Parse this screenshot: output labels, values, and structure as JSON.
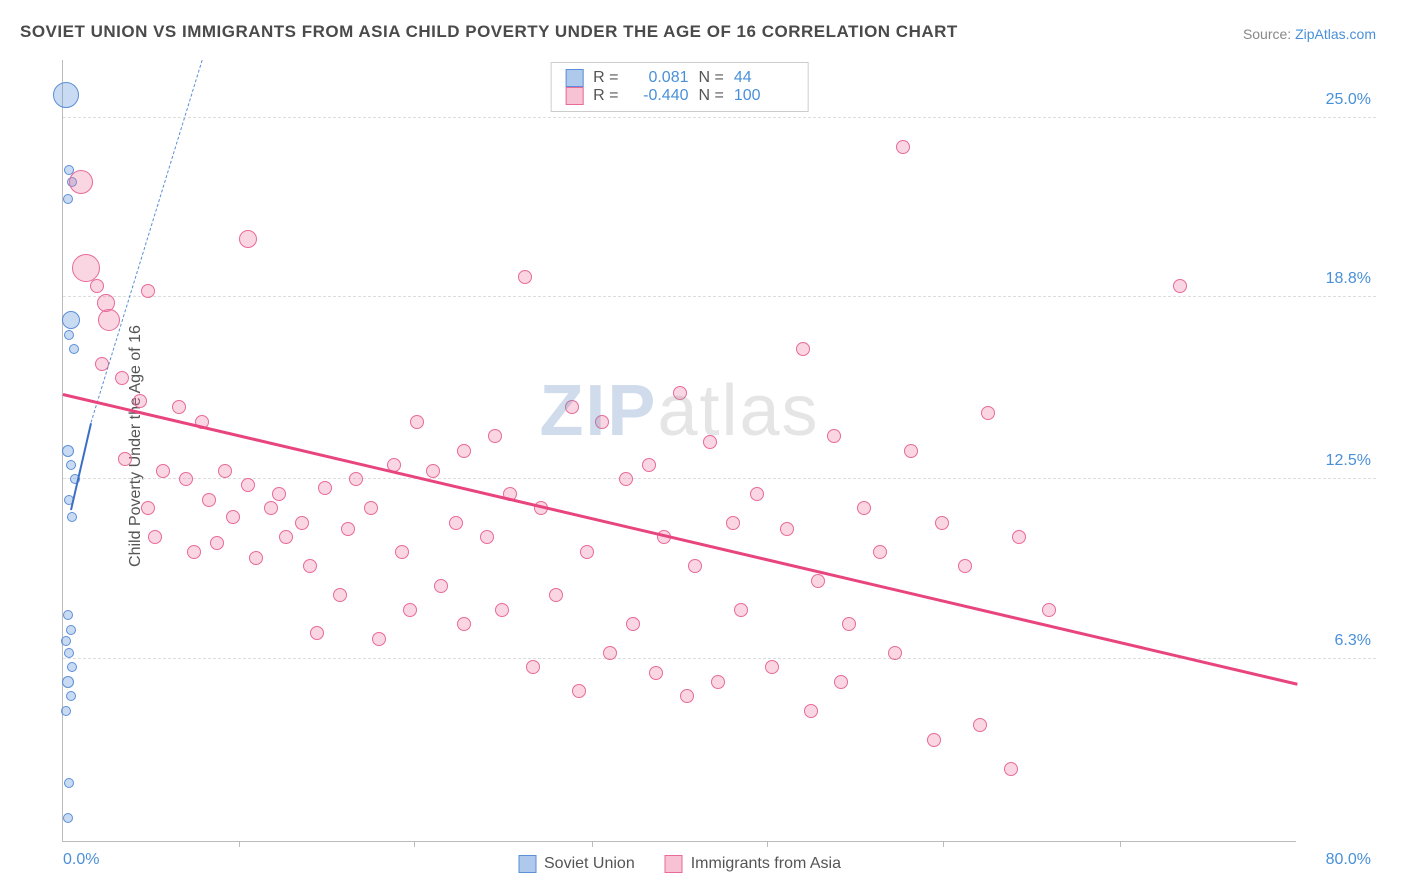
{
  "title": "SOVIET UNION VS IMMIGRANTS FROM ASIA CHILD POVERTY UNDER THE AGE OF 16 CORRELATION CHART",
  "source_prefix": "Source: ",
  "source_name": "ZipAtlas.com",
  "y_axis_label": "Child Poverty Under the Age of 16",
  "watermark_zip": "ZIP",
  "watermark_atlas": "atlas",
  "chart": {
    "type": "scatter",
    "xlim": [
      0,
      80
    ],
    "ylim": [
      0,
      27
    ],
    "x_min_label": "0.0%",
    "x_max_label": "80.0%",
    "x_ticks": [
      11.4,
      22.8,
      34.3,
      45.7,
      57.1,
      68.6
    ],
    "y_ticks": [
      {
        "value": 6.3,
        "label": "6.3%"
      },
      {
        "value": 12.5,
        "label": "12.5%"
      },
      {
        "value": 18.8,
        "label": "18.8%"
      },
      {
        "value": 25.0,
        "label": "25.0%"
      }
    ],
    "grid_color": "#dddddd",
    "axis_color": "#bbbbbb",
    "tick_label_color": "#4a90d9",
    "background_color": "#ffffff",
    "series": [
      {
        "name": "Soviet Union",
        "label": "Soviet Union",
        "fill_color": "rgba(100,150,220,0.35)",
        "stroke_color": "#5b8fd6",
        "swatch_fill": "#aec9ec",
        "swatch_border": "#5b8fd6",
        "r_value": "0.081",
        "n_value": "44",
        "trend": {
          "x1": 0.5,
          "y1": 11.5,
          "x2": 1.8,
          "y2": 14.5,
          "color": "#3b6fc6",
          "width": 2
        },
        "trend_extend": {
          "x1": 1.8,
          "y1": 14.5,
          "x2": 9,
          "y2": 27,
          "color": "#5b8fd6"
        },
        "points": [
          {
            "x": 0.2,
            "y": 25.8,
            "r": 26
          },
          {
            "x": 0.4,
            "y": 23.2,
            "r": 10
          },
          {
            "x": 0.6,
            "y": 22.8,
            "r": 10
          },
          {
            "x": 0.3,
            "y": 22.2,
            "r": 10
          },
          {
            "x": 0.5,
            "y": 18.0,
            "r": 18
          },
          {
            "x": 0.4,
            "y": 17.5,
            "r": 10
          },
          {
            "x": 0.7,
            "y": 17.0,
            "r": 10
          },
          {
            "x": 0.3,
            "y": 13.5,
            "r": 12
          },
          {
            "x": 0.5,
            "y": 13.0,
            "r": 10
          },
          {
            "x": 0.8,
            "y": 12.5,
            "r": 10
          },
          {
            "x": 0.4,
            "y": 11.8,
            "r": 10
          },
          {
            "x": 0.6,
            "y": 11.2,
            "r": 10
          },
          {
            "x": 0.3,
            "y": 7.8,
            "r": 10
          },
          {
            "x": 0.5,
            "y": 7.3,
            "r": 10
          },
          {
            "x": 0.2,
            "y": 6.9,
            "r": 10
          },
          {
            "x": 0.4,
            "y": 6.5,
            "r": 10
          },
          {
            "x": 0.6,
            "y": 6.0,
            "r": 10
          },
          {
            "x": 0.3,
            "y": 5.5,
            "r": 12
          },
          {
            "x": 0.5,
            "y": 5.0,
            "r": 10
          },
          {
            "x": 0.2,
            "y": 4.5,
            "r": 10
          },
          {
            "x": 0.4,
            "y": 2.0,
            "r": 10
          },
          {
            "x": 0.3,
            "y": 0.8,
            "r": 10
          }
        ]
      },
      {
        "name": "Immigrants from Asia",
        "label": "Immigrants from Asia",
        "fill_color": "rgba(235,120,160,0.3)",
        "stroke_color": "#e86a9a",
        "swatch_fill": "#f6c2d4",
        "swatch_border": "#e86a9a",
        "r_value": "-0.440",
        "n_value": "100",
        "trend": {
          "x1": 0,
          "y1": 15.5,
          "x2": 80,
          "y2": 5.5,
          "color": "#e8457e",
          "width": 2.5
        },
        "points": [
          {
            "x": 1.2,
            "y": 22.8,
            "r": 24
          },
          {
            "x": 1.5,
            "y": 19.8,
            "r": 28
          },
          {
            "x": 2.8,
            "y": 18.6,
            "r": 18
          },
          {
            "x": 3.0,
            "y": 18.0,
            "r": 22
          },
          {
            "x": 2.2,
            "y": 19.2,
            "r": 14
          },
          {
            "x": 12.0,
            "y": 20.8,
            "r": 18
          },
          {
            "x": 5.5,
            "y": 19.0,
            "r": 14
          },
          {
            "x": 2.5,
            "y": 16.5,
            "r": 14
          },
          {
            "x": 3.8,
            "y": 16.0,
            "r": 14
          },
          {
            "x": 5.0,
            "y": 15.2,
            "r": 14
          },
          {
            "x": 7.5,
            "y": 15.0,
            "r": 14
          },
          {
            "x": 9.0,
            "y": 14.5,
            "r": 14
          },
          {
            "x": 4.0,
            "y": 13.2,
            "r": 14
          },
          {
            "x": 6.5,
            "y": 12.8,
            "r": 14
          },
          {
            "x": 8.0,
            "y": 12.5,
            "r": 14
          },
          {
            "x": 10.5,
            "y": 12.8,
            "r": 14
          },
          {
            "x": 12.0,
            "y": 12.3,
            "r": 14
          },
          {
            "x": 14.0,
            "y": 12.0,
            "r": 14
          },
          {
            "x": 5.5,
            "y": 11.5,
            "r": 14
          },
          {
            "x": 9.5,
            "y": 11.8,
            "r": 14
          },
          {
            "x": 11.0,
            "y": 11.2,
            "r": 14
          },
          {
            "x": 13.5,
            "y": 11.5,
            "r": 14
          },
          {
            "x": 15.5,
            "y": 11.0,
            "r": 14
          },
          {
            "x": 17.0,
            "y": 12.2,
            "r": 14
          },
          {
            "x": 6.0,
            "y": 10.5,
            "r": 14
          },
          {
            "x": 8.5,
            "y": 10.0,
            "r": 14
          },
          {
            "x": 10.0,
            "y": 10.3,
            "r": 14
          },
          {
            "x": 12.5,
            "y": 9.8,
            "r": 14
          },
          {
            "x": 14.5,
            "y": 10.5,
            "r": 14
          },
          {
            "x": 16.0,
            "y": 9.5,
            "r": 14
          },
          {
            "x": 18.5,
            "y": 10.8,
            "r": 14
          },
          {
            "x": 20.0,
            "y": 11.5,
            "r": 14
          },
          {
            "x": 22.0,
            "y": 10.0,
            "r": 14
          },
          {
            "x": 19.0,
            "y": 12.5,
            "r": 14
          },
          {
            "x": 21.5,
            "y": 13.0,
            "r": 14
          },
          {
            "x": 24.0,
            "y": 12.8,
            "r": 14
          },
          {
            "x": 23.0,
            "y": 14.5,
            "r": 14
          },
          {
            "x": 26.0,
            "y": 13.5,
            "r": 14
          },
          {
            "x": 28.0,
            "y": 14.0,
            "r": 14
          },
          {
            "x": 25.5,
            "y": 11.0,
            "r": 14
          },
          {
            "x": 27.5,
            "y": 10.5,
            "r": 14
          },
          {
            "x": 29.0,
            "y": 12.0,
            "r": 14
          },
          {
            "x": 31.0,
            "y": 11.5,
            "r": 14
          },
          {
            "x": 33.0,
            "y": 15.0,
            "r": 14
          },
          {
            "x": 30.0,
            "y": 19.5,
            "r": 14
          },
          {
            "x": 35.0,
            "y": 14.5,
            "r": 14
          },
          {
            "x": 36.5,
            "y": 12.5,
            "r": 14
          },
          {
            "x": 38.0,
            "y": 13.0,
            "r": 14
          },
          {
            "x": 34.0,
            "y": 10.0,
            "r": 14
          },
          {
            "x": 32.0,
            "y": 8.5,
            "r": 14
          },
          {
            "x": 28.5,
            "y": 8.0,
            "r": 14
          },
          {
            "x": 26.0,
            "y": 7.5,
            "r": 14
          },
          {
            "x": 24.5,
            "y": 8.8,
            "r": 14
          },
          {
            "x": 22.5,
            "y": 8.0,
            "r": 14
          },
          {
            "x": 20.5,
            "y": 7.0,
            "r": 14
          },
          {
            "x": 18.0,
            "y": 8.5,
            "r": 14
          },
          {
            "x": 16.5,
            "y": 7.2,
            "r": 14
          },
          {
            "x": 40.0,
            "y": 15.5,
            "r": 14
          },
          {
            "x": 42.0,
            "y": 13.8,
            "r": 14
          },
          {
            "x": 39.0,
            "y": 10.5,
            "r": 14
          },
          {
            "x": 41.0,
            "y": 9.5,
            "r": 14
          },
          {
            "x": 43.5,
            "y": 11.0,
            "r": 14
          },
          {
            "x": 45.0,
            "y": 12.0,
            "r": 14
          },
          {
            "x": 47.0,
            "y": 10.8,
            "r": 14
          },
          {
            "x": 44.0,
            "y": 8.0,
            "r": 14
          },
          {
            "x": 37.0,
            "y": 7.5,
            "r": 14
          },
          {
            "x": 35.5,
            "y": 6.5,
            "r": 14
          },
          {
            "x": 38.5,
            "y": 5.8,
            "r": 14
          },
          {
            "x": 40.5,
            "y": 5.0,
            "r": 14
          },
          {
            "x": 42.5,
            "y": 5.5,
            "r": 14
          },
          {
            "x": 33.5,
            "y": 5.2,
            "r": 14
          },
          {
            "x": 30.5,
            "y": 6.0,
            "r": 14
          },
          {
            "x": 48.0,
            "y": 17.0,
            "r": 14
          },
          {
            "x": 50.0,
            "y": 14.0,
            "r": 14
          },
          {
            "x": 52.0,
            "y": 11.5,
            "r": 14
          },
          {
            "x": 49.0,
            "y": 9.0,
            "r": 14
          },
          {
            "x": 51.0,
            "y": 7.5,
            "r": 14
          },
          {
            "x": 53.0,
            "y": 10.0,
            "r": 14
          },
          {
            "x": 55.0,
            "y": 13.5,
            "r": 14
          },
          {
            "x": 57.0,
            "y": 11.0,
            "r": 14
          },
          {
            "x": 54.0,
            "y": 6.5,
            "r": 14
          },
          {
            "x": 48.5,
            "y": 4.5,
            "r": 14
          },
          {
            "x": 50.5,
            "y": 5.5,
            "r": 14
          },
          {
            "x": 46.0,
            "y": 6.0,
            "r": 14
          },
          {
            "x": 54.5,
            "y": 24.0,
            "r": 14
          },
          {
            "x": 58.5,
            "y": 9.5,
            "r": 14
          },
          {
            "x": 60.0,
            "y": 14.8,
            "r": 14
          },
          {
            "x": 62.0,
            "y": 10.5,
            "r": 14
          },
          {
            "x": 59.5,
            "y": 4.0,
            "r": 14
          },
          {
            "x": 56.5,
            "y": 3.5,
            "r": 14
          },
          {
            "x": 64.0,
            "y": 8.0,
            "r": 14
          },
          {
            "x": 61.5,
            "y": 2.5,
            "r": 14
          },
          {
            "x": 72.5,
            "y": 19.2,
            "r": 14
          }
        ]
      }
    ],
    "legend_r_label": "R =",
    "legend_n_label": "N ="
  }
}
